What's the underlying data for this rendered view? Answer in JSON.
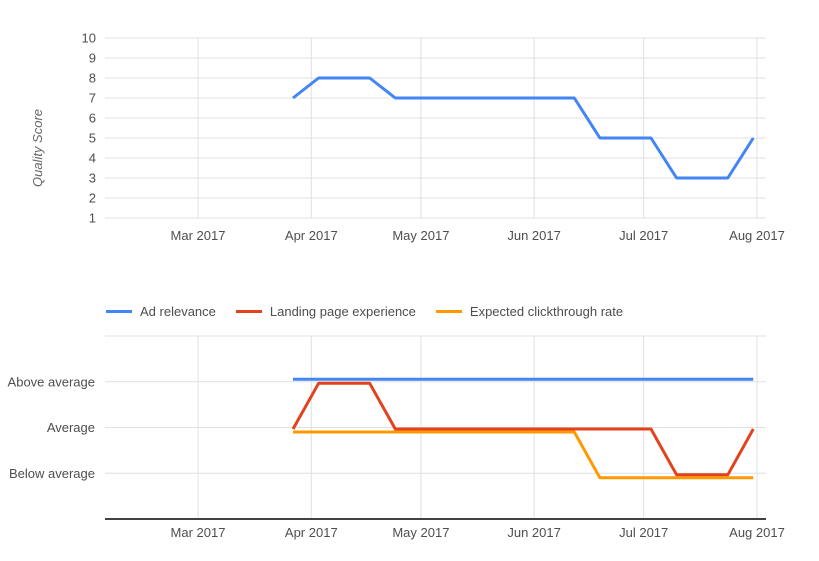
{
  "page": {
    "background": "#ffffff",
    "text_color": "#4e4e4e",
    "gridline_color": "#e0e0e0",
    "axis_line_color": "#424242",
    "ylabel_color": "#666666"
  },
  "chart_data": [
    {
      "type": "line",
      "name": "quality-score-over-time",
      "title": "",
      "xlabel": "",
      "ylabel": "Quality Score",
      "ylim": [
        1,
        10
      ],
      "y_ticks": [
        10,
        9,
        8,
        7,
        6,
        5,
        4,
        3,
        2,
        1
      ],
      "grid": true,
      "legend_position": "none",
      "x_ticks": [
        {
          "label": "Mar 2017",
          "date": "2017-03-01"
        },
        {
          "label": "Apr 2017",
          "date": "2017-04-01"
        },
        {
          "label": "May 2017",
          "date": "2017-05-01"
        },
        {
          "label": "Jun 2017",
          "date": "2017-06-01"
        },
        {
          "label": "Jul 2017",
          "date": "2017-07-01"
        },
        {
          "label": "Aug 2017",
          "date": "2017-08-01"
        }
      ],
      "series": [
        {
          "name": "Quality score",
          "color": "#4285f4",
          "points": [
            [
              "2017-03-27",
              7
            ],
            [
              "2017-04-03",
              8
            ],
            [
              "2017-04-10",
              8
            ],
            [
              "2017-04-17",
              8
            ],
            [
              "2017-04-24",
              7
            ],
            [
              "2017-05-01",
              7
            ],
            [
              "2017-05-08",
              7
            ],
            [
              "2017-05-15",
              7
            ],
            [
              "2017-05-22",
              7
            ],
            [
              "2017-05-29",
              7
            ],
            [
              "2017-06-05",
              7
            ],
            [
              "2017-06-12",
              7
            ],
            [
              "2017-06-19",
              5
            ],
            [
              "2017-06-26",
              5
            ],
            [
              "2017-07-03",
              5
            ],
            [
              "2017-07-10",
              3
            ],
            [
              "2017-07-17",
              3
            ],
            [
              "2017-07-24",
              3
            ],
            [
              "2017-07-31",
              5
            ]
          ]
        }
      ]
    },
    {
      "type": "line",
      "name": "component-rating-over-time",
      "title": "",
      "xlabel": "",
      "ylabel": "",
      "y_categories": [
        "Above average",
        "Average",
        "Below average"
      ],
      "grid": true,
      "legend_position": "top",
      "x_ticks": [
        {
          "label": "Mar 2017",
          "date": "2017-03-01"
        },
        {
          "label": "Apr 2017",
          "date": "2017-04-01"
        },
        {
          "label": "May 2017",
          "date": "2017-05-01"
        },
        {
          "label": "Jun 2017",
          "date": "2017-06-01"
        },
        {
          "label": "Jul 2017",
          "date": "2017-07-01"
        },
        {
          "label": "Aug 2017",
          "date": "2017-08-01"
        }
      ],
      "series": [
        {
          "name": "Ad relevance",
          "color": "#4285f4",
          "points": [
            [
              "2017-03-27",
              "Above average"
            ],
            [
              "2017-04-03",
              "Above average"
            ],
            [
              "2017-04-10",
              "Above average"
            ],
            [
              "2017-04-17",
              "Above average"
            ],
            [
              "2017-04-24",
              "Above average"
            ],
            [
              "2017-05-01",
              "Above average"
            ],
            [
              "2017-05-08",
              "Above average"
            ],
            [
              "2017-05-15",
              "Above average"
            ],
            [
              "2017-05-22",
              "Above average"
            ],
            [
              "2017-05-29",
              "Above average"
            ],
            [
              "2017-06-05",
              "Above average"
            ],
            [
              "2017-06-12",
              "Above average"
            ],
            [
              "2017-06-19",
              "Above average"
            ],
            [
              "2017-06-26",
              "Above average"
            ],
            [
              "2017-07-03",
              "Above average"
            ],
            [
              "2017-07-10",
              "Above average"
            ],
            [
              "2017-07-17",
              "Above average"
            ],
            [
              "2017-07-24",
              "Above average"
            ],
            [
              "2017-07-31",
              "Above average"
            ]
          ]
        },
        {
          "name": "Landing page experience",
          "color": "#e2431e",
          "points": [
            [
              "2017-03-27",
              "Average"
            ],
            [
              "2017-04-03",
              "Above average"
            ],
            [
              "2017-04-10",
              "Above average"
            ],
            [
              "2017-04-17",
              "Above average"
            ],
            [
              "2017-04-24",
              "Average"
            ],
            [
              "2017-05-01",
              "Average"
            ],
            [
              "2017-05-08",
              "Average"
            ],
            [
              "2017-05-15",
              "Average"
            ],
            [
              "2017-05-22",
              "Average"
            ],
            [
              "2017-05-29",
              "Average"
            ],
            [
              "2017-06-05",
              "Average"
            ],
            [
              "2017-06-12",
              "Average"
            ],
            [
              "2017-06-19",
              "Average"
            ],
            [
              "2017-06-26",
              "Average"
            ],
            [
              "2017-07-03",
              "Average"
            ],
            [
              "2017-07-10",
              "Below average"
            ],
            [
              "2017-07-17",
              "Below average"
            ],
            [
              "2017-07-24",
              "Below average"
            ],
            [
              "2017-07-31",
              "Average"
            ]
          ]
        },
        {
          "name": "Expected clickthrough rate",
          "color": "#ff9900",
          "points": [
            [
              "2017-03-27",
              "Average"
            ],
            [
              "2017-04-03",
              "Average"
            ],
            [
              "2017-04-10",
              "Average"
            ],
            [
              "2017-04-17",
              "Average"
            ],
            [
              "2017-04-24",
              "Average"
            ],
            [
              "2017-05-01",
              "Average"
            ],
            [
              "2017-05-08",
              "Average"
            ],
            [
              "2017-05-15",
              "Average"
            ],
            [
              "2017-05-22",
              "Average"
            ],
            [
              "2017-05-29",
              "Average"
            ],
            [
              "2017-06-05",
              "Average"
            ],
            [
              "2017-06-12",
              "Average"
            ],
            [
              "2017-06-19",
              "Below average"
            ],
            [
              "2017-06-26",
              "Below average"
            ],
            [
              "2017-07-03",
              "Below average"
            ],
            [
              "2017-07-10",
              "Below average"
            ],
            [
              "2017-07-17",
              "Below average"
            ],
            [
              "2017-07-24",
              "Below average"
            ],
            [
              "2017-07-31",
              "Below average"
            ]
          ]
        }
      ]
    }
  ]
}
